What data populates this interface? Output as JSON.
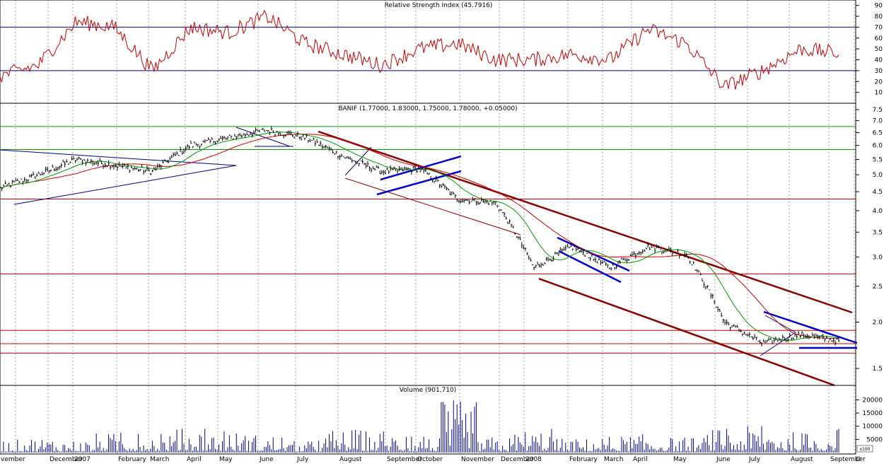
{
  "rsi": {
    "title": "Relative Strength Index (45.7916)",
    "ticks": [
      10,
      20,
      30,
      40,
      50,
      60,
      70,
      80,
      90
    ],
    "levels": [
      30,
      70
    ],
    "line_color": "#cc0000",
    "level_color": "#000080"
  },
  "price": {
    "title": "BANIF (1.77000, 1.83000, 1.75000, 1.78000, +0.05000)",
    "ticks": [
      "1.5",
      "2.0",
      "2.5",
      "3.0",
      "3.5",
      "4.0",
      "4.5",
      "5.0",
      "5.5",
      "6.0",
      "6.5",
      "7.0",
      "7.5"
    ],
    "tick_values": [
      1.5,
      2.0,
      2.5,
      3.0,
      3.5,
      4.0,
      4.5,
      5.0,
      5.5,
      6.0,
      6.5,
      7.0,
      7.5
    ],
    "scale": "log",
    "ylim": [
      1.35,
      7.8
    ],
    "support_resistance_red": [
      4.3,
      2.7,
      1.9,
      1.75,
      1.65
    ],
    "support_resistance_green": [
      6.75,
      5.85
    ]
  },
  "volume": {
    "title": "Volume (901,710)",
    "ticks": [
      "5000",
      "10000",
      "15000",
      "20000"
    ],
    "tick_values": [
      5000,
      10000,
      15000,
      20000
    ],
    "scale_label": "x100",
    "bar_color": "#000099"
  },
  "months": [
    "vember",
    "December",
    "2007",
    "February",
    "March",
    "April",
    "May",
    "June",
    "July",
    "August",
    "September",
    "October",
    "November",
    "December",
    "2008",
    "February",
    "March",
    "April",
    "May",
    "June",
    "July",
    "August",
    "September",
    "O"
  ],
  "colors": {
    "grid": "#a0a0a0",
    "panel_border": "#000000",
    "ma_fast": "#009900",
    "ma_slow": "#cc0000",
    "trend_blue": "#0000cc",
    "trend_dark_red": "#8b0000"
  },
  "chart_data": [
    {
      "type": "line",
      "title": "Relative Strength Index (45.7916)",
      "ylim": [
        0,
        95
      ],
      "reference_lines": [
        30,
        70
      ],
      "x": [
        "2006-11",
        "2006-12",
        "2007-01",
        "2007-02",
        "2007-03",
        "2007-04",
        "2007-05",
        "2007-06",
        "2007-07",
        "2007-08",
        "2007-09",
        "2007-10",
        "2007-11",
        "2007-12",
        "2008-01",
        "2008-02",
        "2008-03",
        "2008-04",
        "2008-05",
        "2008-06",
        "2008-07",
        "2008-08",
        "2008-09"
      ],
      "series": [
        {
          "values": [
            25,
            35,
            75,
            70,
            30,
            70,
            65,
            80,
            55,
            45,
            35,
            50,
            55,
            40,
            40,
            45,
            40,
            68,
            55,
            15,
            30,
            50,
            46
          ]
        }
      ]
    },
    {
      "type": "line",
      "title": "BANIF (1.77000, 1.83000, 1.75000, 1.78000, +0.05000)",
      "ylim": [
        1.35,
        7.8
      ],
      "scale": "log",
      "x": [
        "2006-11",
        "2006-12",
        "2007-01",
        "2007-02",
        "2007-03",
        "2007-04",
        "2007-05",
        "2007-06",
        "2007-07",
        "2007-08",
        "2007-09",
        "2007-10",
        "2007-11",
        "2007-12",
        "2008-01",
        "2008-02",
        "2008-03",
        "2008-04",
        "2008-05",
        "2008-06",
        "2008-07",
        "2008-08",
        "2008-09"
      ],
      "series": [
        {
          "values": [
            4.6,
            5.0,
            5.5,
            5.3,
            5.1,
            6.0,
            6.3,
            6.6,
            6.3,
            5.6,
            5.1,
            5.2,
            4.3,
            4.2,
            2.8,
            3.2,
            2.8,
            3.2,
            3.05,
            2.0,
            1.75,
            1.85,
            1.78
          ]
        }
      ]
    },
    {
      "type": "bar",
      "title": "Volume (901,710)",
      "ylim": [
        0,
        22000
      ],
      "x": [
        "2006-11",
        "2006-12",
        "2007-01",
        "2007-02",
        "2007-03",
        "2007-04",
        "2007-05",
        "2007-06",
        "2007-07",
        "2007-08",
        "2007-09",
        "2007-10",
        "2007-11",
        "2007-12",
        "2008-01",
        "2008-02",
        "2008-03",
        "2008-04",
        "2008-05",
        "2008-06",
        "2008-07",
        "2008-08",
        "2008-09"
      ],
      "series": [
        {
          "values": [
            5000,
            6000,
            5000,
            7500,
            7000,
            9000,
            8000,
            7000,
            4500,
            9000,
            8000,
            6000,
            20000,
            6000,
            9000,
            5500,
            6500,
            7000,
            6000,
            9000,
            10000,
            8000,
            9000
          ]
        }
      ]
    }
  ]
}
